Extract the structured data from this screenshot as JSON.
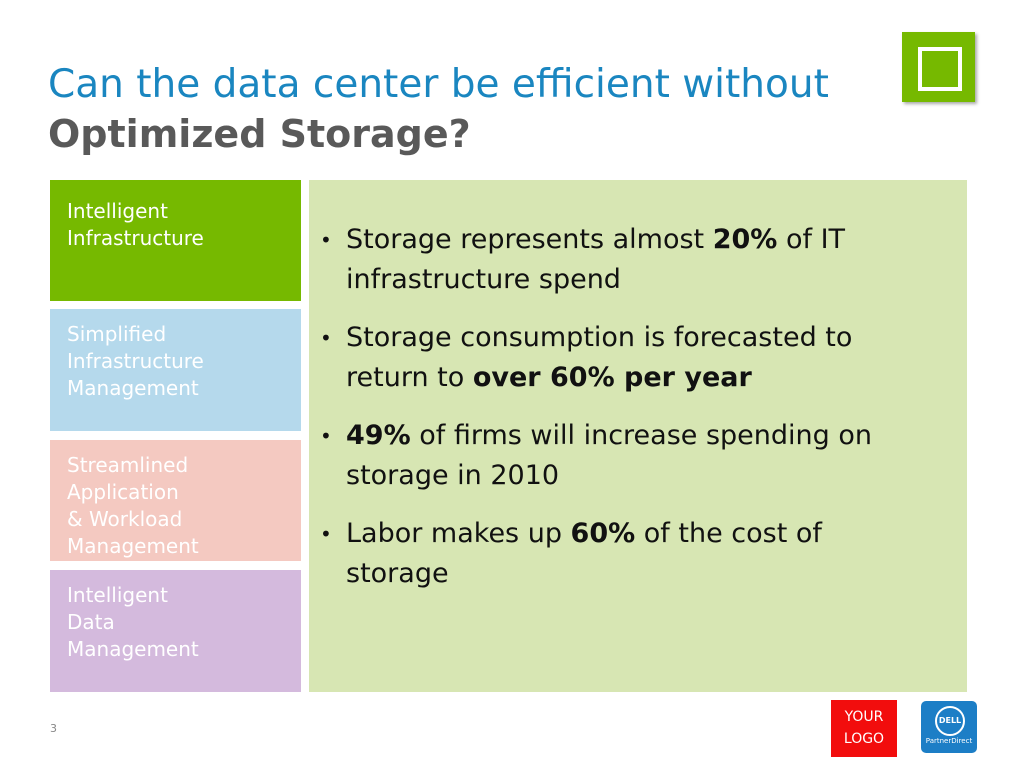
{
  "header": {
    "title_lines": [
      "Can the data center be efficient without",
      "Optimized Storage?"
    ]
  },
  "sidebar": [
    {
      "lines": [
        "Intelligent",
        "Infrastructure"
      ]
    },
    {
      "lines": [
        "Simplified",
        "Infrastructure",
        "Management"
      ]
    },
    {
      "lines": [
        "Streamlined",
        "Application",
        "& Workload",
        "Management"
      ]
    },
    {
      "lines": [
        "Intelligent",
        "Data",
        "Management"
      ]
    }
  ],
  "bullets": [
    {
      "parts": [
        "Storage represents almost ",
        "20%",
        " of IT infrastructure spend"
      ],
      "bold": [
        1
      ]
    },
    {
      "parts": [
        "Storage consumption is forecasted to return to ",
        "over 60% per year"
      ],
      "bold": [
        1
      ]
    },
    {
      "parts": [
        "49%",
        " of firms will increase spending on storage in 2010"
      ],
      "bold": [
        0
      ]
    },
    {
      "parts": [
        "Labor makes up ",
        "60%",
        " of the cost of storage"
      ],
      "bold": [
        1
      ]
    }
  ],
  "footer": {
    "page_number": "3",
    "logo_lines": [
      "YOUR",
      "LOGO"
    ],
    "brand": "DELL",
    "brand_sub": "PartnerDirect"
  }
}
